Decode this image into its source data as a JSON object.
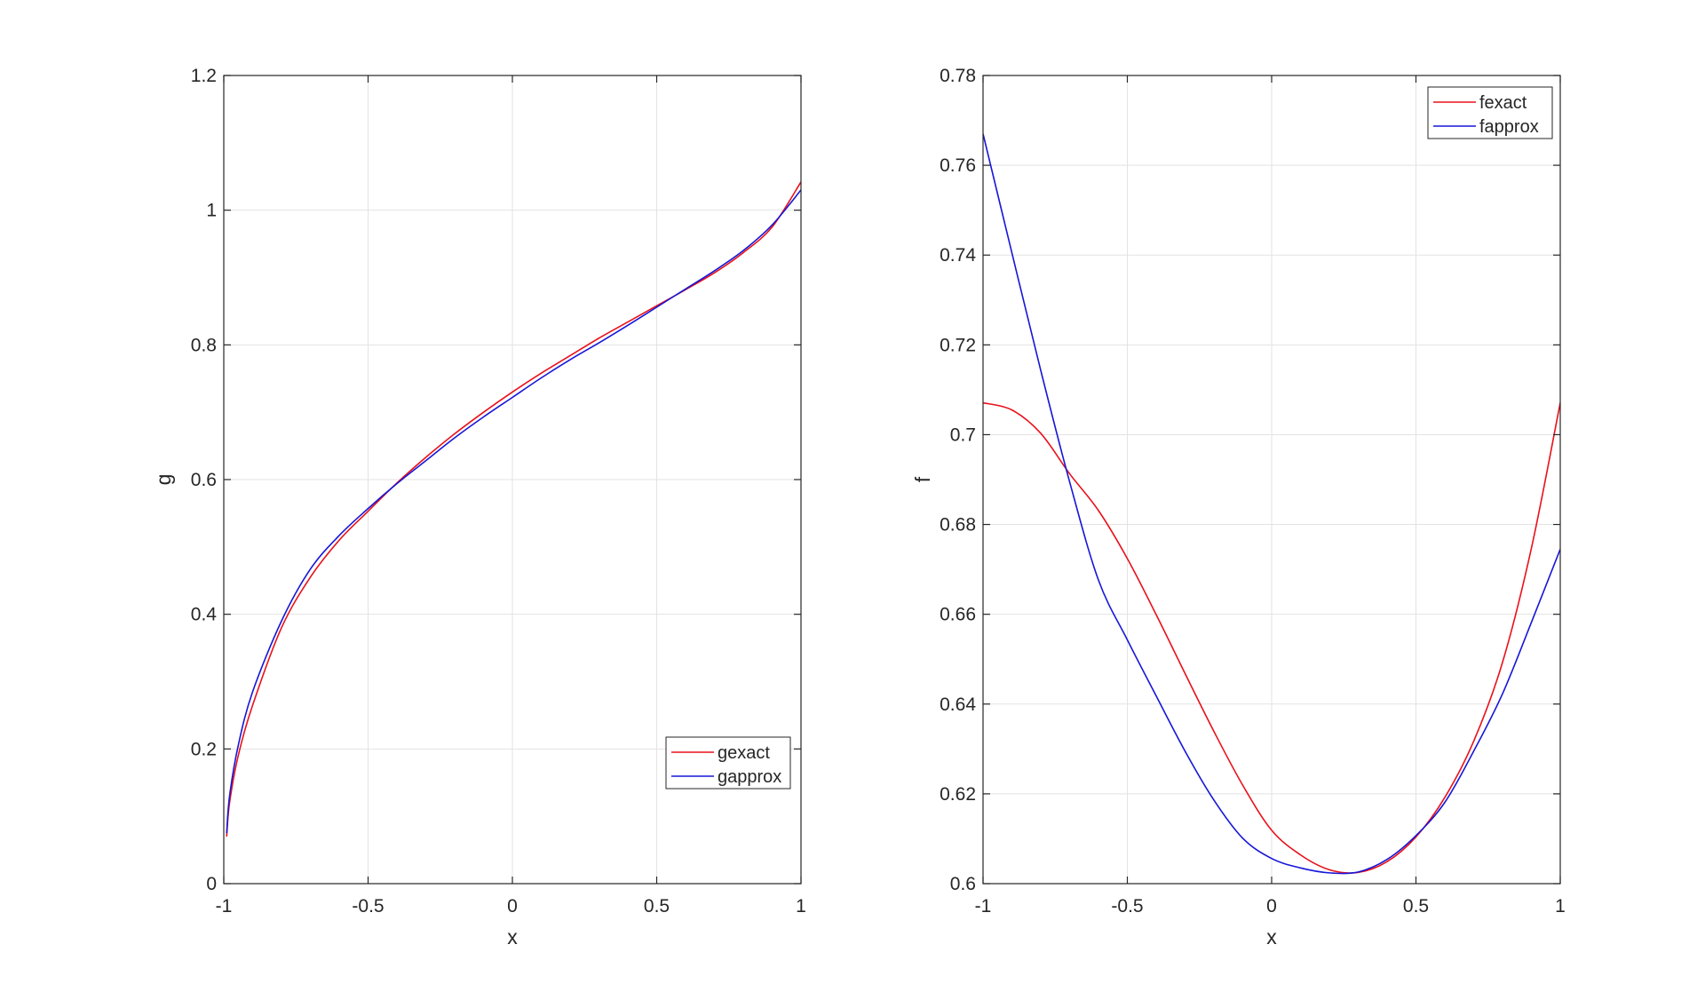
{
  "chart_data": [
    {
      "type": "line",
      "title": "",
      "xlabel": "x",
      "ylabel": "g",
      "xlim": [
        -1,
        1
      ],
      "ylim": [
        0,
        1.2
      ],
      "xticks": [
        -1,
        -0.5,
        0,
        0.5,
        1
      ],
      "xtick_labels": [
        "-1",
        "-0.5",
        "0",
        "0.5",
        "1"
      ],
      "yticks": [
        0,
        0.2,
        0.4,
        0.6,
        0.8,
        1,
        1.2
      ],
      "ytick_labels": [
        "0",
        "0.2",
        "0.4",
        "0.6",
        "0.8",
        "1",
        "1.2"
      ],
      "grid": true,
      "legend": "bottom-right",
      "x": [
        -0.99,
        -0.98,
        -0.95,
        -0.9,
        -0.8,
        -0.7,
        -0.6,
        -0.5,
        -0.4,
        -0.3,
        -0.2,
        -0.1,
        0,
        0.1,
        0.2,
        0.3,
        0.4,
        0.5,
        0.6,
        0.7,
        0.8,
        0.9,
        1.0
      ],
      "series": [
        {
          "name": "gexact",
          "color": "#e8111b",
          "values": [
            0.07,
            0.12,
            0.19,
            0.265,
            0.38,
            0.455,
            0.51,
            0.553,
            0.595,
            0.633,
            0.668,
            0.7,
            0.73,
            0.758,
            0.784,
            0.81,
            0.834,
            0.858,
            0.882,
            0.907,
            0.937,
            0.975,
            1.042
          ]
        },
        {
          "name": "gapprox",
          "color": "#1616d8",
          "values": [
            0.075,
            0.13,
            0.205,
            0.285,
            0.39,
            0.467,
            0.517,
            0.557,
            0.594,
            0.628,
            0.662,
            0.693,
            0.722,
            0.751,
            0.778,
            0.803,
            0.829,
            0.856,
            0.883,
            0.91,
            0.94,
            0.978,
            1.03
          ]
        }
      ]
    },
    {
      "type": "line",
      "title": "",
      "xlabel": "x",
      "ylabel": "f",
      "xlim": [
        -1,
        1
      ],
      "ylim": [
        0.6,
        0.78
      ],
      "xticks": [
        -1,
        -0.5,
        0,
        0.5,
        1
      ],
      "xtick_labels": [
        "-1",
        "-0.5",
        "0",
        "0.5",
        "1"
      ],
      "yticks": [
        0.6,
        0.62,
        0.64,
        0.66,
        0.68,
        0.7,
        0.72,
        0.74,
        0.76,
        0.78
      ],
      "ytick_labels": [
        "0.6",
        "0.62",
        "0.64",
        "0.66",
        "0.68",
        "0.7",
        "0.72",
        "0.74",
        "0.76",
        "0.78"
      ],
      "grid": true,
      "legend": "top-right",
      "x": [
        -1.0,
        -0.9,
        -0.8,
        -0.7,
        -0.6,
        -0.5,
        -0.4,
        -0.3,
        -0.2,
        -0.1,
        0,
        0.1,
        0.2,
        0.3,
        0.4,
        0.5,
        0.6,
        0.7,
        0.8,
        0.9,
        1.0
      ],
      "series": [
        {
          "name": "fexact",
          "color": "#e8111b",
          "values": [
            0.7071,
            0.7055,
            0.7003,
            0.6913,
            0.6831,
            0.6724,
            0.6599,
            0.6468,
            0.6339,
            0.6219,
            0.6119,
            0.6064,
            0.6031,
            0.6025,
            0.6049,
            0.6104,
            0.6192,
            0.6317,
            0.6493,
            0.6747,
            0.7071
          ]
        },
        {
          "name": "fapprox",
          "color": "#1616d8",
          "values": [
            0.767,
            0.7405,
            0.7143,
            0.6895,
            0.6676,
            0.6543,
            0.6418,
            0.6295,
            0.6186,
            0.6101,
            0.6056,
            0.6035,
            0.6024,
            0.6026,
            0.6054,
            0.6107,
            0.6181,
            0.6295,
            0.6423,
            0.6582,
            0.6745
          ]
        }
      ]
    }
  ]
}
